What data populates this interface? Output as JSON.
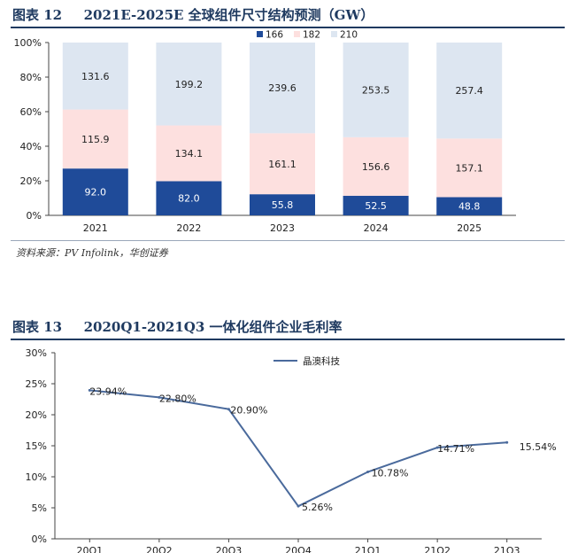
{
  "figures": [
    {
      "label": "图表 12",
      "title": "2021E-2025E 全球组件尺寸结构预测（GW）"
    },
    {
      "label": "图表 13",
      "title": "2020Q1-2021Q3 一体化组件企业毛利率"
    }
  ],
  "source": "资料来源：PV Infolink，华创证券",
  "colors": {
    "s166": "#1f4b99",
    "s182": "#fde0df",
    "s210": "#dde6f1",
    "line": "#4a6a9c",
    "title": "#1f3a60"
  },
  "chart_data": [
    {
      "type": "bar",
      "stacked": "percent",
      "categories": [
        "2021",
        "2022",
        "2023",
        "2024",
        "2025"
      ],
      "series": [
        {
          "name": "166",
          "values": [
            92.0,
            82.0,
            55.8,
            52.5,
            48.8
          ],
          "labels": [
            "92.0",
            "82.0",
            "55.8",
            "52.5",
            "48.8"
          ],
          "color": "#1f4b99"
        },
        {
          "name": "182",
          "values": [
            115.9,
            134.1,
            161.1,
            156.6,
            157.1
          ],
          "labels": [
            "115.9",
            "134.1",
            "161.1",
            "156.6",
            "157.1"
          ],
          "color": "#fde0df"
        },
        {
          "name": "210",
          "values": [
            131.6,
            199.2,
            239.6,
            253.5,
            257.4
          ],
          "labels": [
            "131.6",
            "199.2",
            "239.6",
            "253.5",
            "257.4"
          ],
          "color": "#dde6f1"
        }
      ],
      "yticks": [
        "0%",
        "20%",
        "40%",
        "60%",
        "80%",
        "100%"
      ],
      "ylim": [
        0,
        100
      ],
      "legend": "top"
    },
    {
      "type": "line",
      "categories": [
        "20Q1",
        "20Q2",
        "20Q3",
        "20Q4",
        "21Q1",
        "21Q2",
        "21Q3"
      ],
      "series": [
        {
          "name": "晶澳科技",
          "values": [
            23.94,
            22.8,
            20.9,
            5.26,
            10.78,
            14.71,
            15.54
          ],
          "labels": [
            "23.94%",
            "22.80%",
            "20.90%",
            "5.26%",
            "10.78%",
            "14.71%",
            "15.54%"
          ],
          "color": "#4a6a9c"
        }
      ],
      "yticks": [
        "0%",
        "5%",
        "10%",
        "15%",
        "20%",
        "25%",
        "30%"
      ],
      "ylim": [
        0,
        30
      ],
      "legend": "top"
    }
  ]
}
